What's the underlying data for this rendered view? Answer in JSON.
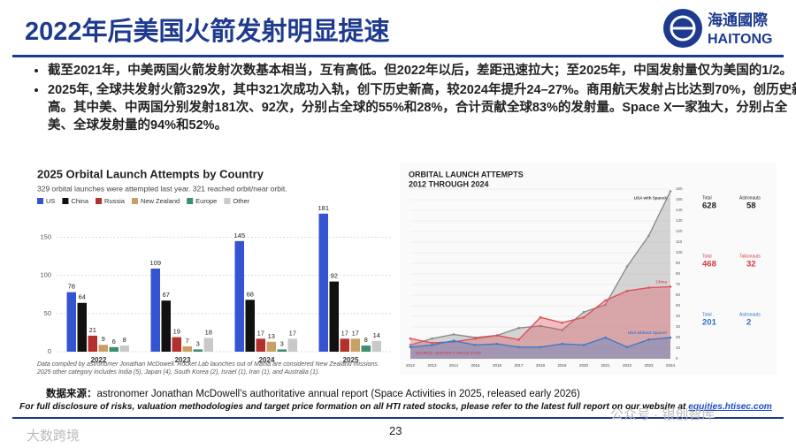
{
  "header": {
    "title": "2022年后美国火箭发射明显提速",
    "logo_cn": "海通國際",
    "logo_en": "HAITONG"
  },
  "bullets": [
    "截至2021年，中美两国火箭发射次数基本相当，互有高低。但2022年以后，差距迅速拉大；至2025年，中国发射量仅为美国的1/2。",
    "2025年, 全球共发射火箭329次，其中321次成功入轨，创下历史新高，较2024年提升24–27%。商用航天发射占比达到70%，创历史新高。其中美、中两国分别发射181次、92次，分别占全球的55%和28%，合计贡献全球83%的发射量。Space X一家独大，分别占全美、全球发射量的94%和52%。"
  ],
  "chart_data": [
    {
      "type": "bar",
      "title": "2025 Orbital Launch Attempts by Country",
      "subtitle": "329 orbital launches were attempted last year. 321 reached orbit/near orbit.",
      "categories": [
        "2022",
        "2023",
        "2024",
        "2025"
      ],
      "series": [
        {
          "name": "US",
          "color": "#3554d1",
          "values": [
            78,
            109,
            145,
            181
          ]
        },
        {
          "name": "China",
          "color": "#111111",
          "values": [
            64,
            67,
            68,
            92
          ]
        },
        {
          "name": "Russia",
          "color": "#b3312c",
          "values": [
            21,
            19,
            17,
            17
          ]
        },
        {
          "name": "New Zealand",
          "color": "#c9a063",
          "values": [
            9,
            7,
            13,
            17
          ]
        },
        {
          "name": "Europe",
          "color": "#3e8e6c",
          "values": [
            6,
            3,
            3,
            8
          ]
        },
        {
          "name": "Other",
          "color": "#c9c9c9",
          "values": [
            8,
            18,
            17,
            14
          ]
        }
      ],
      "ylim": [
        0,
        190
      ],
      "yticks": [
        0,
        50,
        100,
        150
      ],
      "grid": true,
      "note": "Data compiled by astronomer Jonathan McDowell. Rocket Lab launches out of Māhia are considered New Zealand missions. 2025 other category includes India (5), Japan (4), South Korea (2), Israel (1), Iran (1), and Australia (1)."
    },
    {
      "type": "area",
      "title": "ORBITAL LAUNCH ATTEMPTS",
      "subtitle": "2012 THROUGH 2024",
      "categories": [
        "2012",
        "2013",
        "2014",
        "2015",
        "2016",
        "2017",
        "2018",
        "2019",
        "2020",
        "2021",
        "2022",
        "2023",
        "2024"
      ],
      "series": [
        {
          "name": "USA with SpaceX",
          "color": "#8c8c8c",
          "values": [
            13,
            19,
            23,
            20,
            22,
            29,
            31,
            27,
            44,
            51,
            87,
            116,
            158
          ]
        },
        {
          "name": "China",
          "color": "#e0505a",
          "values": [
            19,
            15,
            16,
            19,
            22,
            18,
            39,
            34,
            39,
            55,
            64,
            67,
            68
          ]
        },
        {
          "name": "USA without SpaceX",
          "color": "#3f78c8",
          "values": [
            11,
            13,
            17,
            13,
            14,
            11,
            11,
            14,
            13,
            20,
            11,
            18,
            20
          ]
        }
      ],
      "ylim": [
        0,
        160
      ],
      "yticks": [
        0,
        10,
        20,
        30,
        40,
        50,
        60,
        70,
        80,
        90,
        100,
        110,
        120,
        130,
        140,
        150,
        160
      ],
      "source": "SOURCE: GUNTER'S SPACE PAGE",
      "panels": [
        {
          "label1": "Total",
          "value1": "628",
          "label2": "Astronauts",
          "value2": "58",
          "color": "#222222"
        },
        {
          "label1": "Total",
          "value1": "468",
          "label2": "Taikonauts",
          "value2": "32",
          "color": "#d9363e"
        },
        {
          "label1": "Total",
          "value1": "201",
          "label2": "Astronauts",
          "value2": "2",
          "color": "#2f6fc0"
        }
      ]
    }
  ],
  "source": {
    "label": "数据来源：",
    "text": "astronomer Jonathan McDowell’s authoritative annual report (Space Activities in 2025, released early 2026)"
  },
  "disclaimer": {
    "text": "For full disclosure of risks, valuation methodologies and target price formation on all HTI rated stocks, please refer to the latest full report on our website at ",
    "link": "equities.htisec.com"
  },
  "page_number": "23",
  "watermarks": [
    "大数跨境",
    "公众号 · 银创智库"
  ]
}
